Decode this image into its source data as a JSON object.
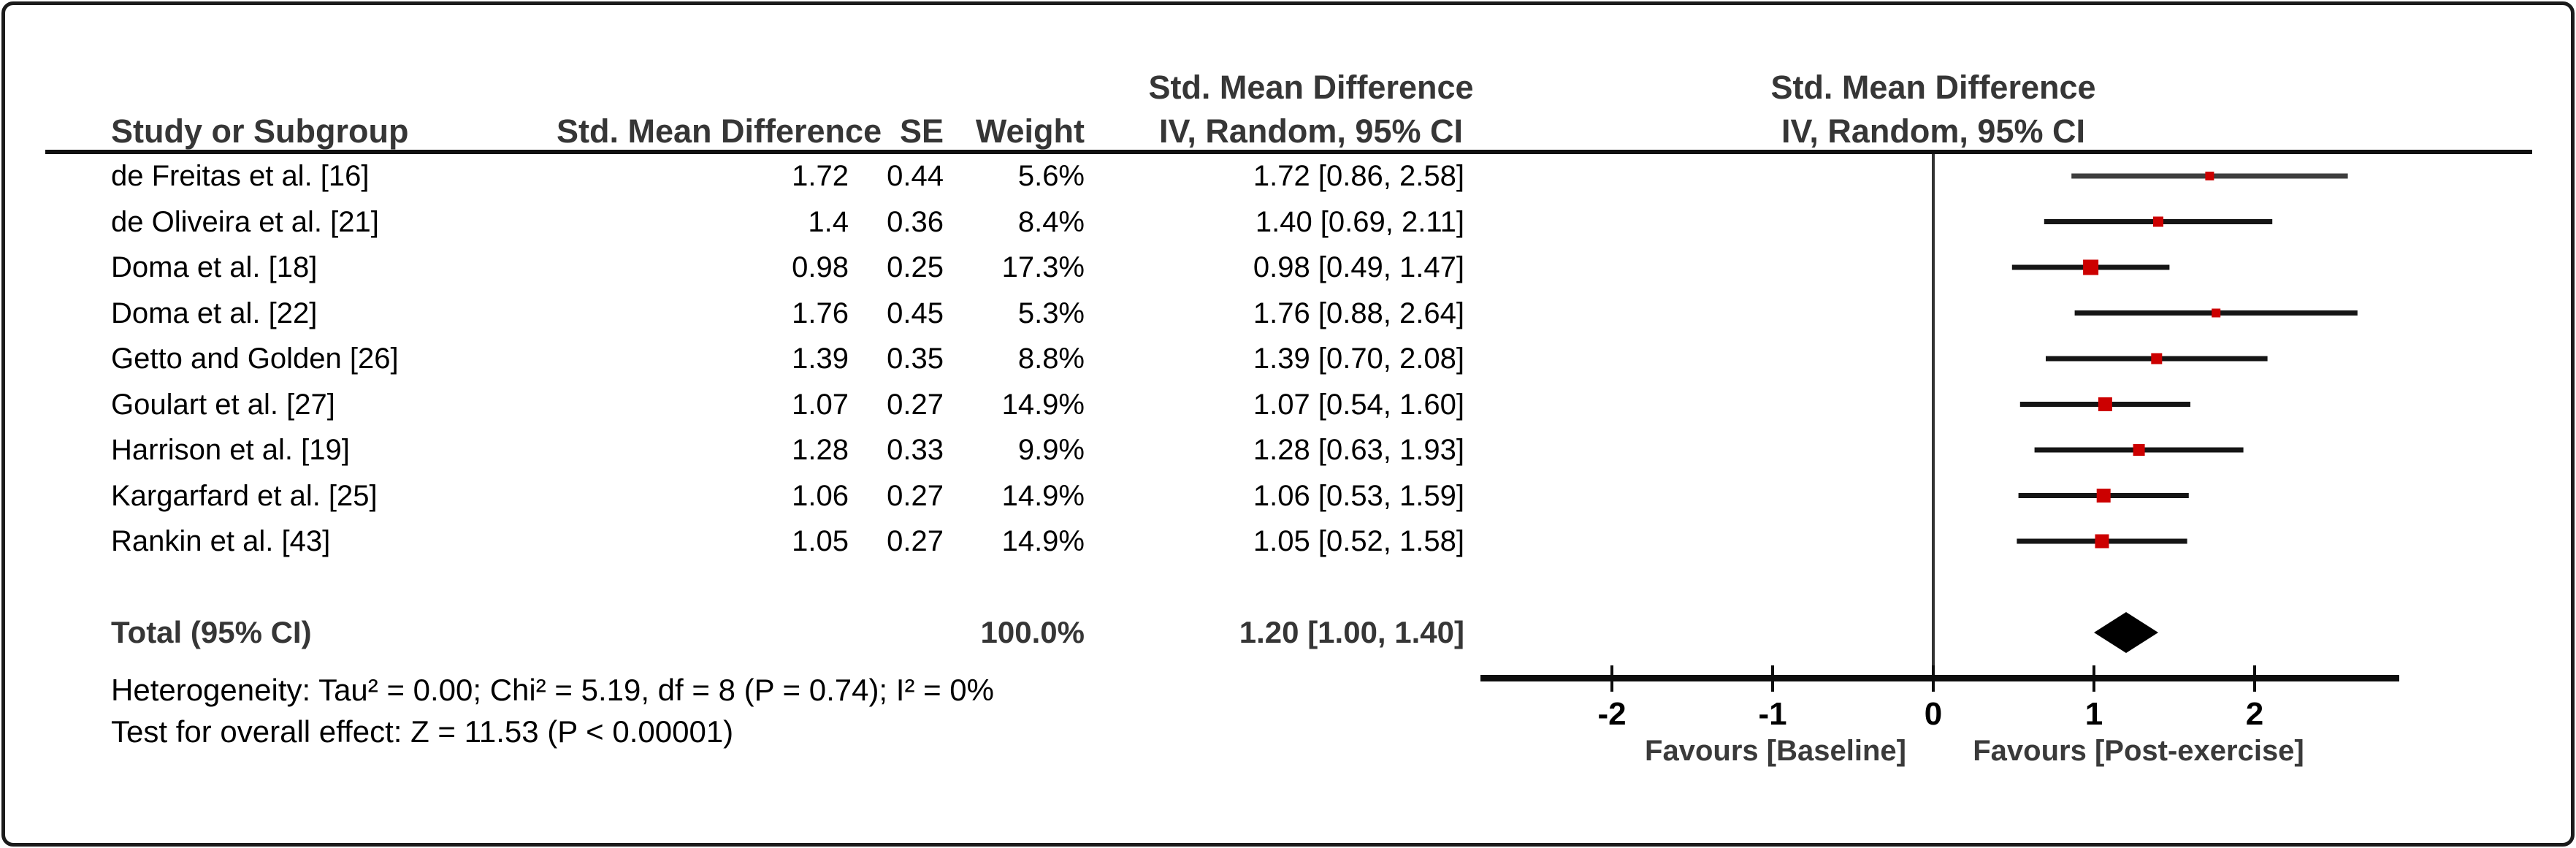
{
  "header": {
    "col_study": "Study or Subgroup",
    "col_smd": "Std. Mean Difference",
    "col_se": "SE",
    "col_weight": "Weight",
    "ci_col_line1": "Std. Mean Difference",
    "ci_col_line2": "IV, Random, 95% CI",
    "plot_col_line1": "Std. Mean Difference",
    "plot_col_line2": "IV, Random, 95% CI"
  },
  "chart_data": {
    "type": "forest",
    "effect_measure": "Std. Mean Difference",
    "model": "IV, Random, 95% CI",
    "studies": [
      {
        "name": "de Freitas et al. [16]",
        "smd": "1.72",
        "se": "0.44",
        "weight": "5.6%",
        "weight_value": 5.6,
        "ci_text": "1.72 [0.86, 2.58]",
        "est": 1.72,
        "ci_low": 0.86,
        "ci_high": 2.58
      },
      {
        "name": "de Oliveira et al. [21]",
        "smd": "1.4",
        "se": "0.36",
        "weight": "8.4%",
        "weight_value": 8.4,
        "ci_text": "1.40 [0.69, 2.11]",
        "est": 1.4,
        "ci_low": 0.69,
        "ci_high": 2.11
      },
      {
        "name": "Doma et al. [18]",
        "smd": "0.98",
        "se": "0.25",
        "weight": "17.3%",
        "weight_value": 17.3,
        "ci_text": "0.98 [0.49, 1.47]",
        "est": 0.98,
        "ci_low": 0.49,
        "ci_high": 1.47
      },
      {
        "name": "Doma et al. [22]",
        "smd": "1.76",
        "se": "0.45",
        "weight": "5.3%",
        "weight_value": 5.3,
        "ci_text": "1.76 [0.88, 2.64]",
        "est": 1.76,
        "ci_low": 0.88,
        "ci_high": 2.64
      },
      {
        "name": "Getto and Golden [26]",
        "smd": "1.39",
        "se": "0.35",
        "weight": "8.8%",
        "weight_value": 8.8,
        "ci_text": "1.39 [0.70, 2.08]",
        "est": 1.39,
        "ci_low": 0.7,
        "ci_high": 2.08
      },
      {
        "name": "Goulart et al. [27]",
        "smd": "1.07",
        "se": "0.27",
        "weight": "14.9%",
        "weight_value": 14.9,
        "ci_text": "1.07 [0.54, 1.60]",
        "est": 1.07,
        "ci_low": 0.54,
        "ci_high": 1.6
      },
      {
        "name": "Harrison et al. [19]",
        "smd": "1.28",
        "se": "0.33",
        "weight": "9.9%",
        "weight_value": 9.9,
        "ci_text": "1.28 [0.63, 1.93]",
        "est": 1.28,
        "ci_low": 0.63,
        "ci_high": 1.93
      },
      {
        "name": "Kargarfard et al. [25]",
        "smd": "1.06",
        "se": "0.27",
        "weight": "14.9%",
        "weight_value": 14.9,
        "ci_text": "1.06 [0.53, 1.59]",
        "est": 1.06,
        "ci_low": 0.53,
        "ci_high": 1.59
      },
      {
        "name": "Rankin et al. [43]",
        "smd": "1.05",
        "se": "0.27",
        "weight": "14.9%",
        "weight_value": 14.9,
        "ci_text": "1.05 [0.52, 1.58]",
        "est": 1.05,
        "ci_low": 0.52,
        "ci_high": 1.58
      }
    ],
    "total": {
      "label": "Total (95% CI)",
      "weight": "100.0%",
      "ci_text": "1.20 [1.00, 1.40]",
      "est": 1.2,
      "ci_low": 1.0,
      "ci_high": 1.4
    },
    "axis": {
      "ticks": [
        -2,
        -1,
        0,
        1,
        2
      ],
      "xmin": -2.82,
      "xmax": 2.9,
      "favours_left": "Favours [Baseline]",
      "favours_right": "Favours [Post-exercise]"
    },
    "footer": {
      "heterogeneity": "Heterogeneity: Tau² = 0.00; Chi² = 5.19, df = 8 (P = 0.74); I² = 0%",
      "overall_effect": "Test for overall effect: Z = 11.53 (P < 0.00001)"
    },
    "colors": {
      "square": "#cc0000",
      "ci_line": "#151515",
      "ci_line_first_row": "#3e3e3e",
      "diamond": "#000000",
      "axis": "#0d0d0d"
    }
  }
}
